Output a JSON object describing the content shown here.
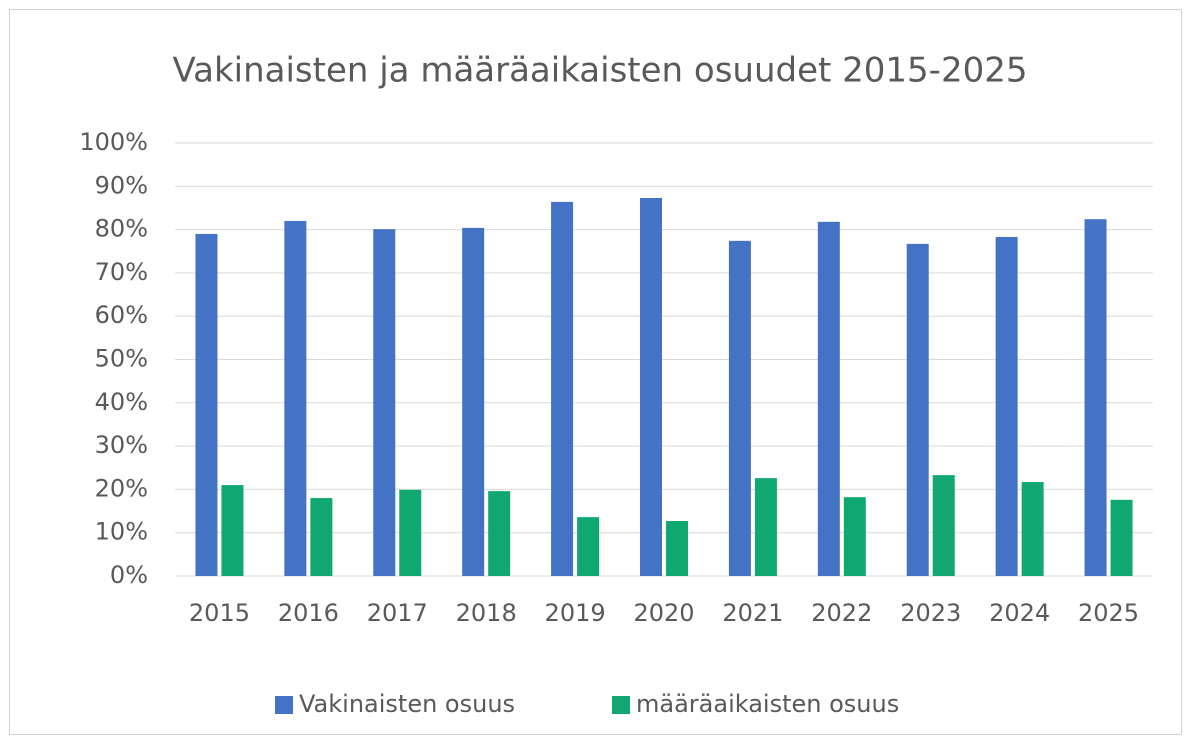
{
  "chart_data": {
    "type": "bar",
    "title": "Vakinaisten ja määräaikaisten osuudet 2015-2025",
    "categories": [
      "2015",
      "2016",
      "2017",
      "2018",
      "2019",
      "2020",
      "2021",
      "2022",
      "2023",
      "2024",
      "2025"
    ],
    "series": [
      {
        "name": "Vakinaisten osuus",
        "color": "#4472c4",
        "values": [
          79.0,
          82.0,
          80.1,
          80.4,
          86.4,
          87.3,
          77.4,
          81.8,
          76.7,
          78.3,
          82.4
        ]
      },
      {
        "name": "määräaikaisten osuus",
        "color": "#10a870",
        "values": [
          21.0,
          18.0,
          19.9,
          19.6,
          13.6,
          12.7,
          22.6,
          18.2,
          23.3,
          21.7,
          17.6
        ]
      }
    ],
    "ylim": [
      0,
      100
    ],
    "yticks": [
      {
        "value": 0,
        "label": "0%"
      },
      {
        "value": 10,
        "label": "10%"
      },
      {
        "value": 20,
        "label": "20%"
      },
      {
        "value": 30,
        "label": "30%"
      },
      {
        "value": 40,
        "label": "40%"
      },
      {
        "value": 50,
        "label": "50%"
      },
      {
        "value": 60,
        "label": "60%"
      },
      {
        "value": 70,
        "label": "70%"
      },
      {
        "value": 80,
        "label": "80%"
      },
      {
        "value": 90,
        "label": "90%"
      },
      {
        "value": 100,
        "label": "100%"
      }
    ],
    "grid": true,
    "legend": "bottom"
  }
}
